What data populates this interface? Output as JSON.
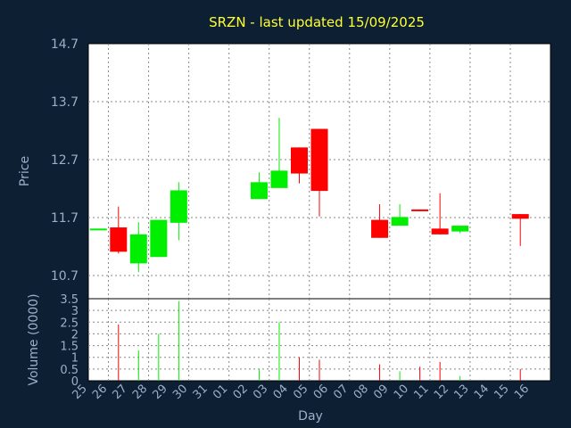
{
  "chart_data": {
    "type": "candlestick",
    "title": "SRZN - last updated 15/09/2025",
    "xlabel": "Day",
    "ylabel": "Price",
    "volume_label": "Volume (0000)",
    "categories": [
      "25",
      "26",
      "27",
      "28",
      "29",
      "30",
      "31",
      "01",
      "02",
      "03",
      "04",
      "05",
      "06",
      "07",
      "08",
      "09",
      "10",
      "11",
      "12",
      "13",
      "14",
      "15",
      "16"
    ],
    "price_ylim": [
      10.3,
      14.7
    ],
    "price_ticks": [
      "14.7",
      "13.7",
      "12.7",
      "11.7",
      "10.7"
    ],
    "volume_ylim": [
      0,
      3.5
    ],
    "volume_ticks": [
      "3.5",
      "3",
      "2.5",
      "2",
      "1.5",
      "1",
      "0.5",
      "0"
    ],
    "up_color": "#00ee00",
    "down_color": "#ff0000",
    "grid": true,
    "candles": [
      {
        "day": "25",
        "open": 11.51,
        "close": 11.51,
        "high": 11.51,
        "low": 11.51,
        "volume": 0,
        "direction": "up"
      },
      {
        "day": "26",
        "open": 11.53,
        "close": 11.11,
        "high": 11.89,
        "low": 11.08,
        "volume": 2.4,
        "direction": "down"
      },
      {
        "day": "27",
        "open": 10.91,
        "close": 11.41,
        "high": 11.62,
        "low": 10.76,
        "volume": 1.3,
        "direction": "up"
      },
      {
        "day": "28",
        "open": 11.02,
        "close": 11.66,
        "high": 11.66,
        "low": 11.02,
        "volume": 2.0,
        "direction": "up"
      },
      {
        "day": "29",
        "open": 11.61,
        "close": 12.17,
        "high": 12.31,
        "low": 11.31,
        "volume": 3.4,
        "direction": "up"
      },
      {
        "day": "02",
        "open": 12.02,
        "close": 12.31,
        "high": 12.48,
        "low": 12.02,
        "volume": 0.5,
        "direction": "up"
      },
      {
        "day": "03",
        "open": 12.21,
        "close": 12.51,
        "high": 13.42,
        "low": 12.21,
        "volume": 2.5,
        "direction": "up"
      },
      {
        "day": "04",
        "open": 12.91,
        "close": 12.46,
        "high": 12.91,
        "low": 12.29,
        "volume": 1.0,
        "direction": "down"
      },
      {
        "day": "05",
        "open": 13.23,
        "close": 12.16,
        "high": 13.23,
        "low": 11.72,
        "volume": 0.9,
        "direction": "down"
      },
      {
        "day": "08",
        "open": 11.66,
        "close": 11.35,
        "high": 11.93,
        "low": 11.35,
        "volume": 0.7,
        "direction": "down"
      },
      {
        "day": "09",
        "open": 11.56,
        "close": 11.71,
        "high": 11.93,
        "low": 11.56,
        "volume": 0.4,
        "direction": "up"
      },
      {
        "day": "10",
        "open": 11.84,
        "close": 11.81,
        "high": 11.84,
        "low": 11.81,
        "volume": 0.6,
        "direction": "down"
      },
      {
        "day": "11",
        "open": 11.51,
        "close": 11.41,
        "high": 12.12,
        "low": 11.41,
        "volume": 0.8,
        "direction": "down"
      },
      {
        "day": "12",
        "open": 11.46,
        "close": 11.56,
        "high": 11.56,
        "low": 11.43,
        "volume": 0.2,
        "direction": "up"
      },
      {
        "day": "15",
        "open": 11.76,
        "close": 11.68,
        "high": 11.76,
        "low": 11.21,
        "volume": 0.5,
        "direction": "down"
      }
    ]
  }
}
